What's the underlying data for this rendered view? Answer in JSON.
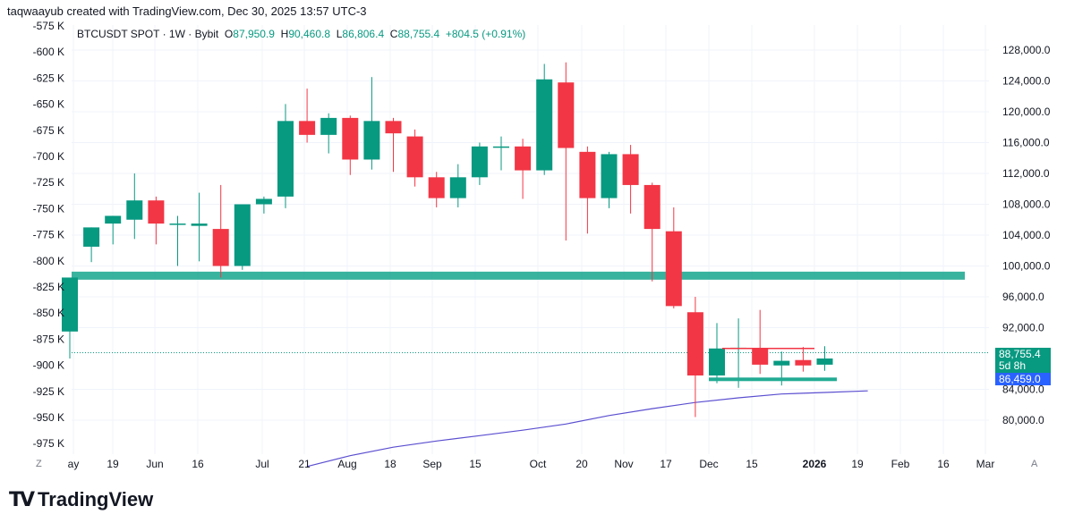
{
  "header": {
    "credit": "taqwaayub created with TradingView.com, Dec 30, 2025 13:57 UTC-3",
    "symbol": "BTCUSDT SPOT · 1W · Bybit",
    "open_label": "O",
    "open": "87,950.9",
    "high_label": "H",
    "high": "90,460.8",
    "low_label": "L",
    "low": "86,806.4",
    "close_label": "C",
    "close": "88,755.4",
    "change": "+804.5 (+0.91%)"
  },
  "badges": {
    "last_price": "88,755.4",
    "countdown": "5d 8h",
    "ma_value": "86,459.0"
  },
  "controls": {
    "z_label": "Z",
    "a_label": "A"
  },
  "footer": {
    "logo_mark": "TV",
    "logo_text": "TradingView"
  },
  "colors": {
    "up": "#089981",
    "down": "#f23645",
    "zone": "#22ab94",
    "ma": "#5b4fd0",
    "grid": "#f0f3fa"
  },
  "chart_data": {
    "type": "candlestick",
    "right_axis": {
      "ticks": [
        "128,000.0",
        "124,000.0",
        "120,000.0",
        "116,000.0",
        "112,000.0",
        "108,000.0",
        "104,000.0",
        "100,000.0",
        "96,000.0",
        "92,000.0",
        "84,000.0",
        "80,000.0"
      ]
    },
    "left_axis": {
      "ticks": [
        "-575 K",
        "-600 K",
        "-625 K",
        "-650 K",
        "-675 K",
        "-700 K",
        "-725 K",
        "-750 K",
        "-775 K",
        "-800 K",
        "-825 K",
        "-850 K",
        "-875 K",
        "-900 K",
        "-925 K",
        "-950 K",
        "-975 K"
      ]
    },
    "x_axis": {
      "ticks": [
        "ay",
        "19",
        "Jun",
        "16",
        "Jul",
        "21",
        "Aug",
        "18",
        "Sep",
        "15",
        "Oct",
        "20",
        "Nov",
        "17",
        "Dec",
        "15",
        "2026",
        "19",
        "Feb",
        "16",
        "Mar"
      ],
      "bold": "2026"
    },
    "right_pane_candles": [
      {
        "o": 91500,
        "h": 94500,
        "l": 88000,
        "c": 98500
      },
      {
        "o": 102500,
        "h": 105000,
        "l": 100500,
        "c": 105000
      },
      {
        "o": 105500,
        "h": 106500,
        "l": 102800,
        "c": 106500
      },
      {
        "o": 106000,
        "h": 112000,
        "l": 103500,
        "c": 108500
      },
      {
        "o": 108500,
        "h": 109000,
        "l": 102800,
        "c": 105500
      },
      {
        "o": 105500,
        "h": 106500,
        "l": 100000,
        "c": 105500
      },
      {
        "o": 105200,
        "h": 109500,
        "l": 100600,
        "c": 105500
      },
      {
        "o": 104800,
        "h": 110500,
        "l": 98500,
        "c": 100000
      },
      {
        "o": 100000,
        "h": 108000,
        "l": 99500,
        "c": 108000
      },
      {
        "o": 108000,
        "h": 109000,
        "l": 106800,
        "c": 108700
      },
      {
        "o": 109000,
        "h": 121000,
        "l": 107500,
        "c": 118800
      },
      {
        "o": 118800,
        "h": 123000,
        "l": 116000,
        "c": 117000
      },
      {
        "o": 117000,
        "h": 119800,
        "l": 114600,
        "c": 119200
      },
      {
        "o": 119200,
        "h": 119500,
        "l": 111800,
        "c": 113800
      },
      {
        "o": 113800,
        "h": 124500,
        "l": 112500,
        "c": 118800
      },
      {
        "o": 118800,
        "h": 119200,
        "l": 112200,
        "c": 117200
      },
      {
        "o": 116800,
        "h": 117700,
        "l": 110300,
        "c": 111500
      },
      {
        "o": 111500,
        "h": 112200,
        "l": 107600,
        "c": 108800
      },
      {
        "o": 108800,
        "h": 113200,
        "l": 107600,
        "c": 111500
      },
      {
        "o": 111500,
        "h": 116000,
        "l": 110500,
        "c": 115500
      },
      {
        "o": 115500,
        "h": 116800,
        "l": 112400,
        "c": 115500
      },
      {
        "o": 115500,
        "h": 116500,
        "l": 108700,
        "c": 112400
      },
      {
        "o": 112400,
        "h": 126200,
        "l": 111800,
        "c": 124200
      },
      {
        "o": 123800,
        "h": 126400,
        "l": 103300,
        "c": 115300
      },
      {
        "o": 114800,
        "h": 115500,
        "l": 104200,
        "c": 108800
      },
      {
        "o": 108800,
        "h": 114800,
        "l": 107500,
        "c": 114500
      },
      {
        "o": 114500,
        "h": 115700,
        "l": 106800,
        "c": 110500
      },
      {
        "o": 110500,
        "h": 110800,
        "l": 98000,
        "c": 104800
      },
      {
        "o": 104500,
        "h": 107600,
        "l": 94500,
        "c": 94800
      },
      {
        "o": 94000,
        "h": 96000,
        "l": 80400,
        "c": 85800
      },
      {
        "o": 85800,
        "h": 92600,
        "l": 84800,
        "c": 89300
      },
      {
        "o": 89400,
        "h": 93200,
        "l": 84200,
        "c": 89400
      },
      {
        "o": 89300,
        "h": 94300,
        "l": 86000,
        "c": 87200
      },
      {
        "o": 87100,
        "h": 88900,
        "l": 84500,
        "c": 87700
      },
      {
        "o": 87800,
        "h": 89500,
        "l": 86300,
        "c": 87100
      },
      {
        "o": 87200,
        "h": 89600,
        "l": 86400,
        "c": 88000
      }
    ],
    "zone_level": 98800,
    "ma_series": [
      {
        "i": 10,
        "v": 74000
      },
      {
        "i": 12,
        "v": 75400
      },
      {
        "i": 14,
        "v": 76500
      },
      {
        "i": 16,
        "v": 77300
      },
      {
        "i": 18,
        "v": 78000
      },
      {
        "i": 20,
        "v": 78700
      },
      {
        "i": 22,
        "v": 79500
      },
      {
        "i": 24,
        "v": 80600
      },
      {
        "i": 26,
        "v": 81500
      },
      {
        "i": 28,
        "v": 82300
      },
      {
        "i": 30,
        "v": 82900
      },
      {
        "i": 32,
        "v": 83400
      },
      {
        "i": 34,
        "v": 83600
      },
      {
        "i": 36,
        "v": 83800
      }
    ],
    "resistance_level": 89300,
    "support_level": 85300
  }
}
